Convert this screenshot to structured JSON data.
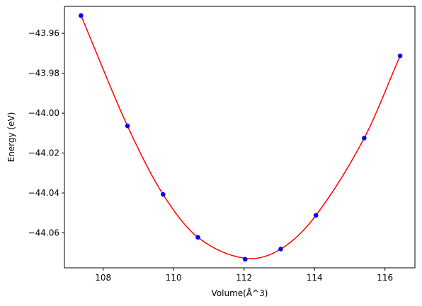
{
  "chart_data": {
    "type": "scatter",
    "title": "",
    "xlabel": "Volume(Å^3)",
    "ylabel": "Energy (eV)",
    "xlim": [
      106.9,
      116.85
    ],
    "ylim": [
      -44.0775,
      -43.9465
    ],
    "x_ticks": [
      {
        "value": 108,
        "label": "108"
      },
      {
        "value": 110,
        "label": "110"
      },
      {
        "value": 112,
        "label": "112"
      },
      {
        "value": 114,
        "label": "114"
      },
      {
        "value": 116,
        "label": "116"
      }
    ],
    "y_ticks": [
      {
        "value": -43.96,
        "label": "−43.96"
      },
      {
        "value": -43.98,
        "label": "−43.98"
      },
      {
        "value": -44.0,
        "label": "−44.00"
      },
      {
        "value": -44.02,
        "label": "−44.02"
      },
      {
        "value": -44.04,
        "label": "−44.04"
      },
      {
        "value": -44.06,
        "label": "−44.06"
      }
    ],
    "grid": false,
    "legend": "none",
    "series": [
      {
        "kind": "scatter",
        "color": "#0000ff",
        "marker": "circle",
        "points": [
          {
            "x": 107.37,
            "y": -43.9511
          },
          {
            "x": 108.69,
            "y": -44.0064
          },
          {
            "x": 109.7,
            "y": -44.0407
          },
          {
            "x": 110.69,
            "y": -44.0622
          },
          {
            "x": 112.03,
            "y": -44.0732
          },
          {
            "x": 113.04,
            "y": -44.0681
          },
          {
            "x": 114.04,
            "y": -44.0512
          },
          {
            "x": 115.41,
            "y": -44.0125
          },
          {
            "x": 116.43,
            "y": -43.9713
          }
        ]
      },
      {
        "kind": "line",
        "color": "#ff0000",
        "fit": "equation-of-state",
        "x_range": [
          107.37,
          116.43
        ],
        "y_min": -44.0727,
        "x_at_min": 112.03
      }
    ]
  }
}
